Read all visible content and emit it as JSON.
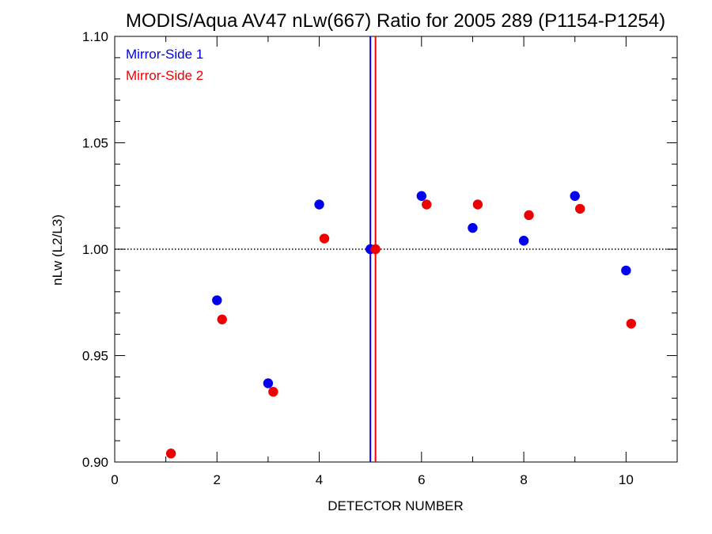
{
  "chart_data": {
    "type": "scatter",
    "title": "MODIS/Aqua AV47 nLw(667) Ratio for 2005 289 (P1154-P1254)",
    "xlabel": "DETECTOR NUMBER",
    "ylabel": "nLw (L2/L3)",
    "xlim": [
      0,
      11
    ],
    "ylim": [
      0.9,
      1.1
    ],
    "xticks": [
      "0",
      "2",
      "4",
      "6",
      "8",
      "10"
    ],
    "yticks": [
      "0.90",
      "0.95",
      "1.00",
      "1.05",
      "1.10"
    ],
    "grid": false,
    "legend_position": "top-left",
    "reference_line_y": 1.0,
    "series": [
      {
        "name": "Mirror-Side 1",
        "color": "#0000ee",
        "vline_x": 5.0,
        "x": [
          2,
          3,
          4,
          5,
          6,
          7,
          8,
          9,
          10
        ],
        "y": [
          0.976,
          0.937,
          1.021,
          1.0,
          1.025,
          1.01,
          1.004,
          1.025,
          0.99
        ]
      },
      {
        "name": "Mirror-Side 2",
        "color": "#ee0000",
        "vline_x": 5.1,
        "x": [
          1.1,
          2.1,
          3.1,
          4.1,
          5.1,
          6.1,
          7.1,
          8.1,
          9.1,
          10.1
        ],
        "y": [
          0.904,
          0.967,
          0.933,
          1.005,
          1.0,
          1.021,
          1.021,
          1.016,
          1.019,
          0.965
        ]
      }
    ]
  }
}
